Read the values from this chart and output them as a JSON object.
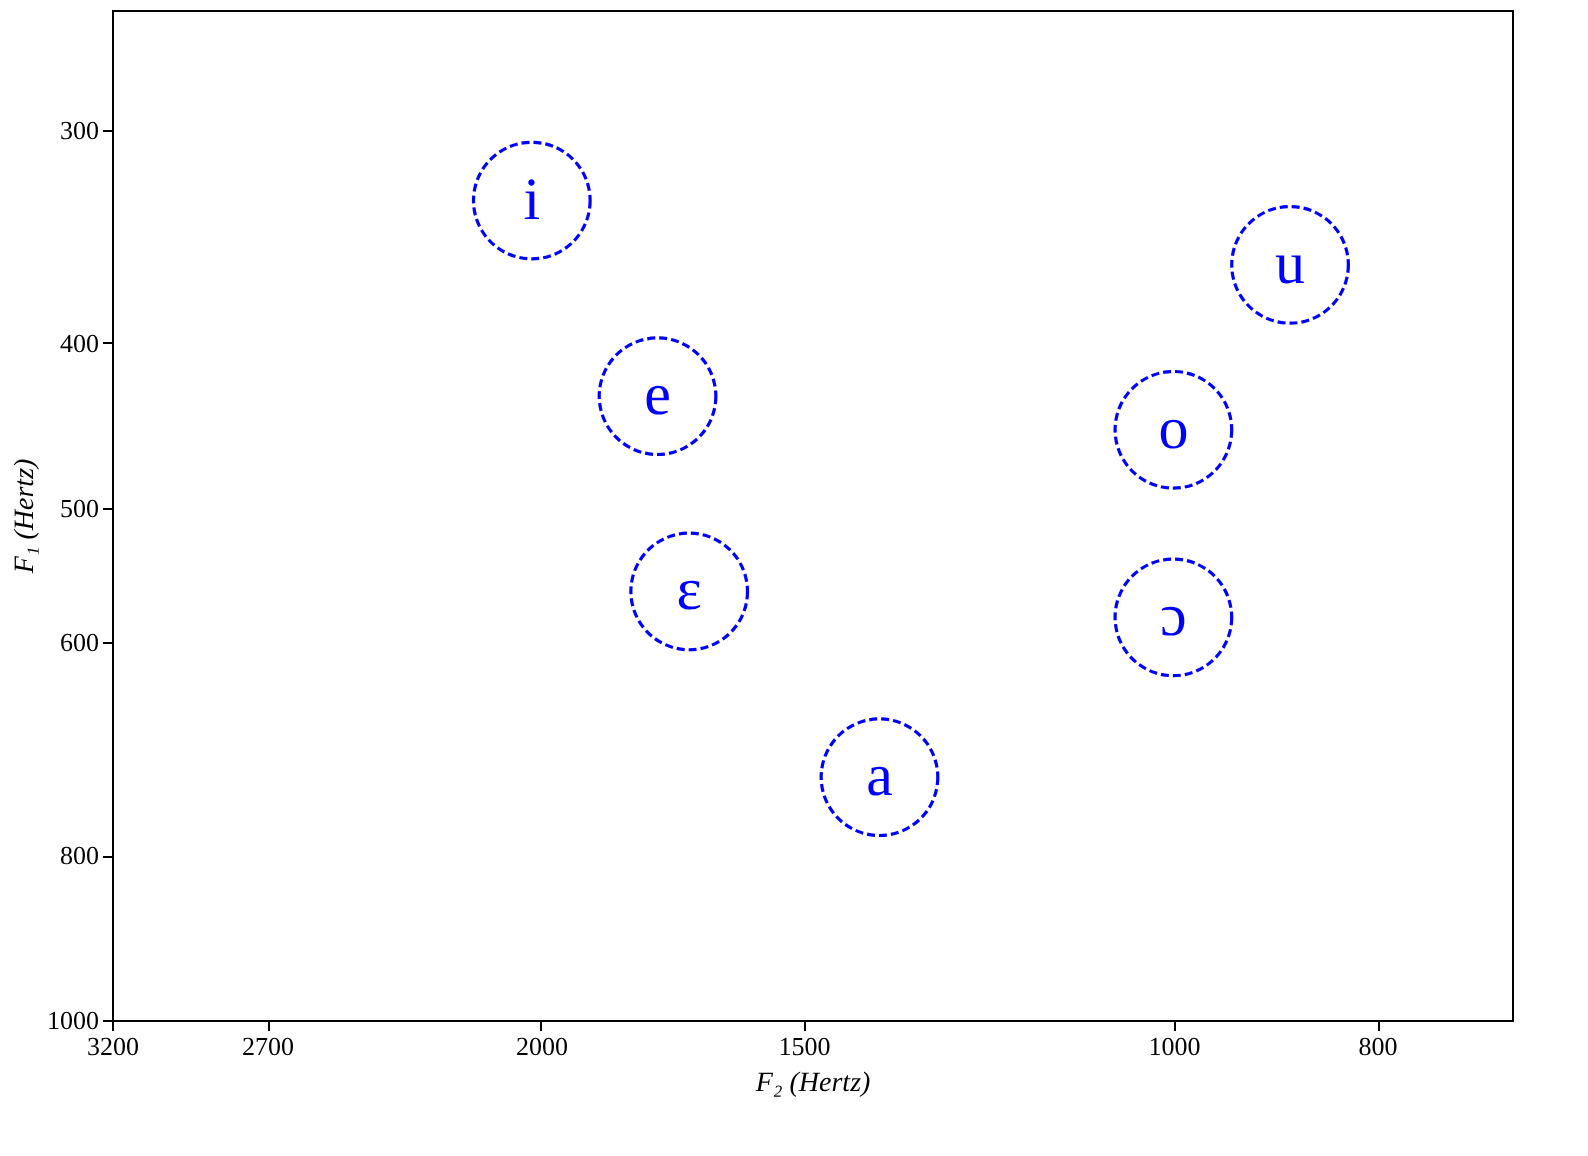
{
  "chart_data": {
    "type": "scatter",
    "xlabel": "F₂ (Hertz)",
    "ylabel": "F₁ (Hertz)",
    "x": [
      2020,
      1760,
      1700,
      1380,
      880,
      1000,
      1000
    ],
    "values": [
      330,
      430,
      560,
      720,
      360,
      450,
      580
    ],
    "value_labels": [
      "i",
      "e",
      "ɛ",
      "a",
      "u",
      "o",
      "ɔ"
    ],
    "color": "#0000ff",
    "marker": "circle",
    "line_style": "dashed",
    "log": "xy",
    "xlim": [
      3200,
      690
    ],
    "ylim": [
      1000,
      255
    ],
    "xticks": [
      3200,
      2700,
      2000,
      1500,
      1000,
      800
    ],
    "yticks": [
      300,
      400,
      500,
      600,
      800,
      1000
    ],
    "grid": false,
    "legend": false
  }
}
